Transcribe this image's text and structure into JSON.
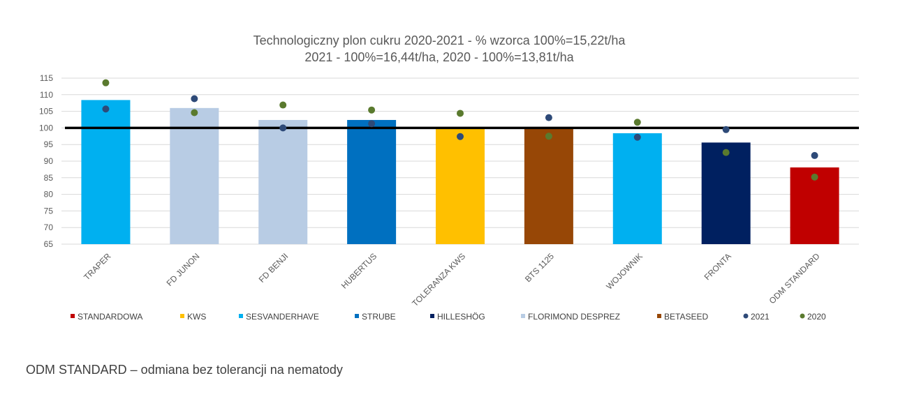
{
  "chart_data": {
    "type": "bar",
    "title_line1": "Technologiczny plon cukru 2020-2021 - % wzorca 100%=15,22t/ha",
    "title_line2": "2021 - 100%=16,44t/ha, 2020 - 100%=13,81t/ha",
    "ylim": [
      65,
      115
    ],
    "yticks": [
      "65",
      "70",
      "75",
      "80",
      "85",
      "90",
      "95",
      "100",
      "105",
      "110",
      "115"
    ],
    "reference_line": 100,
    "grid": true,
    "legend_position": "bottom",
    "categories": [
      "TRAPER",
      "FD JUNON",
      "FD BENJI",
      "HUBERTUS",
      "TOLERANZA KWS",
      "BTS 1125",
      "WOJOWNIK",
      "FRONTA",
      "ODM STANDARD"
    ],
    "bars": [
      {
        "value": 108.4,
        "group": "SESVANDERHAVE"
      },
      {
        "value": 106.0,
        "group": "FLORIMOND DESPREZ"
      },
      {
        "value": 102.4,
        "group": "FLORIMOND DESPREZ"
      },
      {
        "value": 102.4,
        "group": "STRUBE"
      },
      {
        "value": 100.0,
        "group": "KWS"
      },
      {
        "value": 100.0,
        "group": "BETASEED"
      },
      {
        "value": 98.4,
        "group": "SESVANDERHAVE"
      },
      {
        "value": 95.6,
        "group": "HILLESHÖG"
      },
      {
        "value": 88.1,
        "group": "STANDARDOWA"
      }
    ],
    "series": [
      {
        "name": "2021",
        "color": "#2E4A78",
        "values": [
          105.7,
          108.8,
          100.0,
          101.3,
          97.4,
          103.1,
          97.2,
          99.5,
          91.7
        ]
      },
      {
        "name": "2020",
        "color": "#5A7A2E",
        "values": [
          113.6,
          104.6,
          106.9,
          105.4,
          104.4,
          97.5,
          101.7,
          92.6,
          85.2
        ]
      }
    ],
    "legend": [
      {
        "label": "STANDARDOWA",
        "color": "#C00000",
        "kind": "square"
      },
      {
        "label": "KWS",
        "color": "#FFC000",
        "kind": "square"
      },
      {
        "label": "SESVANDERHAVE",
        "color": "#00B0F0",
        "kind": "square"
      },
      {
        "label": "STRUBE",
        "color": "#0070C0",
        "kind": "square"
      },
      {
        "label": "HILLESHÖG",
        "color": "#002060",
        "kind": "square"
      },
      {
        "label": "FLORIMOND DESPREZ",
        "color": "#B8CCE4",
        "kind": "square"
      },
      {
        "label": "BETASEED",
        "color": "#974706",
        "kind": "square"
      },
      {
        "label": "2021",
        "color": "#2E4A78",
        "kind": "dot"
      },
      {
        "label": "2020",
        "color": "#5A7A2E",
        "kind": "dot"
      }
    ]
  },
  "footnote": "ODM STANDARD – odmiana bez tolerancji na nematody"
}
